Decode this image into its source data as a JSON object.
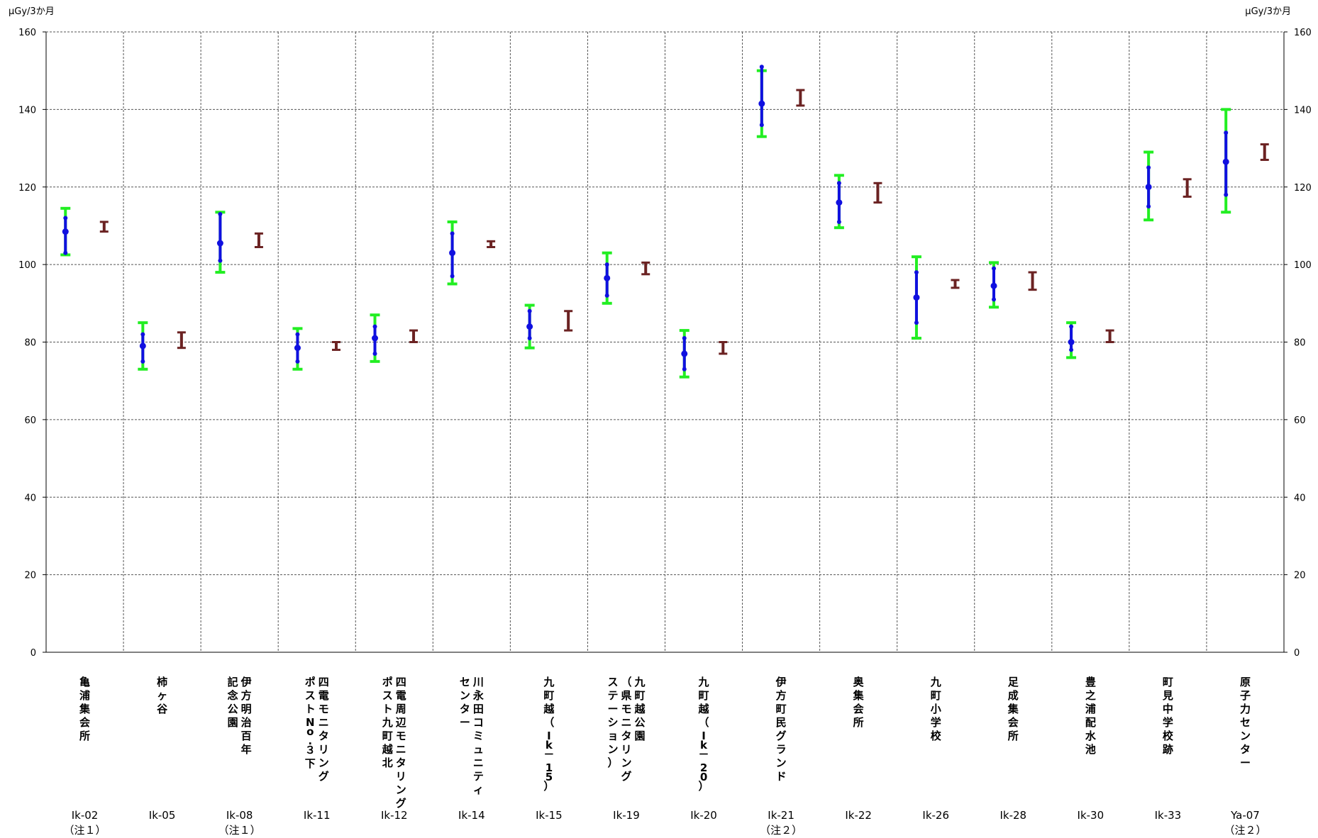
{
  "chart_data": {
    "type": "errorbar",
    "y_unit_left": "μGy/3か月",
    "y_unit_right": "μGy/3か月",
    "ylim": [
      0,
      160
    ],
    "yticks": [
      "0",
      "20",
      "40",
      "60",
      "80",
      "100",
      "120",
      "140",
      "160"
    ],
    "grid": true,
    "colors": {
      "current_range": "#1010e0",
      "current_outer": "#22ee22",
      "past": "#6b2222",
      "axis": "#000000",
      "grid": "#555555"
    },
    "categories": [
      {
        "name_lines": [
          "亀浦集会所"
        ],
        "code": "Ik-02",
        "note": "（注１）",
        "current": {
          "mean": 108.5,
          "lo": 103,
          "hi": 112,
          "outer_lo": 102.5,
          "outer_hi": 114.5
        },
        "past": {
          "lo": 108.5,
          "hi": 111
        }
      },
      {
        "name_lines": [
          "柿ヶ谷"
        ],
        "code": "Ik-05",
        "note": "",
        "current": {
          "mean": 79,
          "lo": 75,
          "hi": 82,
          "outer_lo": 73,
          "outer_hi": 85
        },
        "past": {
          "lo": 78.5,
          "hi": 82.5
        }
      },
      {
        "name_lines": [
          "伊方明治百年",
          "記念公園"
        ],
        "code": "Ik-08",
        "note": "（注１）",
        "current": {
          "mean": 105.5,
          "lo": 101,
          "hi": 113,
          "outer_lo": 98,
          "outer_hi": 113.5
        },
        "past": {
          "lo": 104.5,
          "hi": 108
        }
      },
      {
        "name_lines": [
          "四電モニタリング",
          "ポストNo.３下"
        ],
        "code": "Ik-11",
        "note": "",
        "current": {
          "mean": 78.5,
          "lo": 75,
          "hi": 82,
          "outer_lo": 73,
          "outer_hi": 83.5
        },
        "past": {
          "lo": 78,
          "hi": 80
        }
      },
      {
        "name_lines": [
          "四電周辺モニタリング",
          "ポスト九町越北"
        ],
        "code": "Ik-12",
        "note": "",
        "current": {
          "mean": 81,
          "lo": 77,
          "hi": 84,
          "outer_lo": 75,
          "outer_hi": 87
        },
        "past": {
          "lo": 80,
          "hi": 83
        }
      },
      {
        "name_lines": [
          "川永田コミュニティ",
          "センター"
        ],
        "code": "Ik-14",
        "note": "",
        "current": {
          "mean": 103,
          "lo": 97,
          "hi": 108,
          "outer_lo": 95,
          "outer_hi": 111
        },
        "past": {
          "lo": 104.5,
          "hi": 106
        }
      },
      {
        "name_lines": [
          "九町越（Ik－15）"
        ],
        "code": "Ik-15",
        "note": "",
        "current": {
          "mean": 84,
          "lo": 81,
          "hi": 88,
          "outer_lo": 78.5,
          "outer_hi": 89.5
        },
        "past": {
          "lo": 83,
          "hi": 88
        }
      },
      {
        "name_lines": [
          "九町越公園",
          "（県モニタリング",
          "ステーション）"
        ],
        "code": "Ik-19",
        "note": "",
        "current": {
          "mean": 96.5,
          "lo": 92,
          "hi": 100,
          "outer_lo": 90,
          "outer_hi": 103
        },
        "past": {
          "lo": 97.5,
          "hi": 100.5
        }
      },
      {
        "name_lines": [
          "九町越（Ik－20）"
        ],
        "code": "Ik-20",
        "note": "",
        "current": {
          "mean": 77,
          "lo": 73,
          "hi": 81,
          "outer_lo": 71,
          "outer_hi": 83
        },
        "past": {
          "lo": 77,
          "hi": 80
        }
      },
      {
        "name_lines": [
          "伊方町民グランド"
        ],
        "code": "Ik-21",
        "note": "（注２）",
        "current": {
          "mean": 141.5,
          "lo": 136,
          "hi": 151,
          "outer_lo": 133,
          "outer_hi": 150
        },
        "past": {
          "lo": 141,
          "hi": 145
        }
      },
      {
        "name_lines": [
          "奥集会所"
        ],
        "code": "Ik-22",
        "note": "",
        "current": {
          "mean": 116,
          "lo": 111,
          "hi": 121,
          "outer_lo": 109.5,
          "outer_hi": 123
        },
        "past": {
          "lo": 116,
          "hi": 121
        }
      },
      {
        "name_lines": [
          "九町小学校"
        ],
        "code": "Ik-26",
        "note": "",
        "current": {
          "mean": 91.5,
          "lo": 85,
          "hi": 98,
          "outer_lo": 81,
          "outer_hi": 102
        },
        "past": {
          "lo": 94,
          "hi": 96
        }
      },
      {
        "name_lines": [
          "足成集会所"
        ],
        "code": "Ik-28",
        "note": "",
        "current": {
          "mean": 94.5,
          "lo": 91,
          "hi": 99,
          "outer_lo": 89,
          "outer_hi": 100.5
        },
        "past": {
          "lo": 93.5,
          "hi": 98
        }
      },
      {
        "name_lines": [
          "豊之浦配水池"
        ],
        "code": "Ik-30",
        "note": "",
        "current": {
          "mean": 80,
          "lo": 78,
          "hi": 84,
          "outer_lo": 76,
          "outer_hi": 85
        },
        "past": {
          "lo": 80,
          "hi": 83
        }
      },
      {
        "name_lines": [
          "町見中学校跡"
        ],
        "code": "Ik-33",
        "note": "",
        "current": {
          "mean": 120,
          "lo": 115,
          "hi": 125,
          "outer_lo": 111.5,
          "outer_hi": 129
        },
        "past": {
          "lo": 117.5,
          "hi": 122
        }
      },
      {
        "name_lines": [
          "原子力センター"
        ],
        "code": "Ya-07",
        "note": "（注２）",
        "current": {
          "mean": 126.5,
          "lo": 118,
          "hi": 134,
          "outer_lo": 113.5,
          "outer_hi": 140
        },
        "past": {
          "lo": 127,
          "hi": 131
        }
      }
    ]
  }
}
